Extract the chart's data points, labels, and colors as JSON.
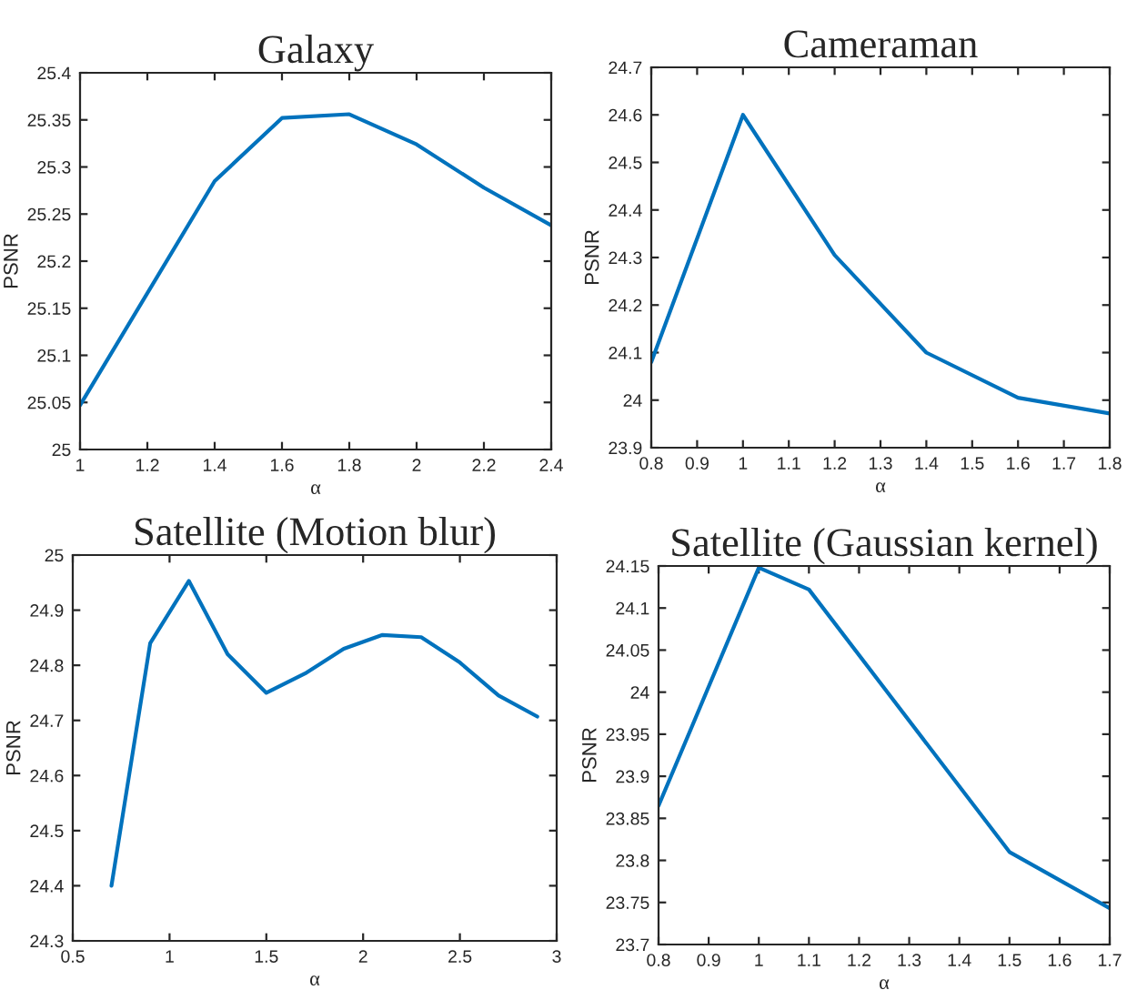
{
  "chart_data": [
    {
      "type": "line",
      "title": "Galaxy",
      "xlabel": "α",
      "ylabel": "PSNR",
      "x": [
        1,
        1.4,
        1.6,
        1.8,
        2,
        2.2,
        2.4
      ],
      "series": [
        {
          "color": "#0072bd",
          "values": [
            25.047,
            25.285,
            25.352,
            25.356,
            25.324,
            25.278,
            25.238
          ]
        }
      ],
      "xlim": [
        1,
        2.4
      ],
      "xticks": [
        1,
        1.2,
        1.4,
        1.6,
        1.8,
        2,
        2.2,
        2.4
      ],
      "ylim": [
        25,
        25.4
      ],
      "yticks": [
        25,
        25.05,
        25.1,
        25.15,
        25.2,
        25.25,
        25.3,
        25.35,
        25.4
      ],
      "grid": false,
      "legend": false,
      "marker": "none",
      "line_style": "solid"
    },
    {
      "type": "line",
      "title": "Cameraman",
      "xlabel": "α",
      "ylabel": "PSNR",
      "x": [
        0.8,
        1,
        1.2,
        1.4,
        1.6,
        1.8
      ],
      "series": [
        {
          "color": "#0072bd",
          "values": [
            24.08,
            24.6,
            24.305,
            24.1,
            24.005,
            23.972
          ]
        }
      ],
      "xlim": [
        0.8,
        1.8
      ],
      "xticks": [
        0.8,
        0.9,
        1,
        1.1,
        1.2,
        1.3,
        1.4,
        1.5,
        1.6,
        1.7,
        1.8
      ],
      "ylim": [
        23.9,
        24.7
      ],
      "yticks": [
        23.9,
        24,
        24.1,
        24.2,
        24.3,
        24.4,
        24.5,
        24.6,
        24.7
      ],
      "grid": false,
      "legend": false,
      "marker": "none",
      "line_style": "solid"
    },
    {
      "type": "line",
      "title": "Satellite (Motion blur)",
      "xlabel": "α",
      "ylabel": "PSNR",
      "x": [
        0.7,
        0.9,
        1.1,
        1.3,
        1.5,
        1.7,
        1.9,
        2.1,
        2.3,
        2.5,
        2.7,
        2.9
      ],
      "series": [
        {
          "color": "#0072bd",
          "values": [
            24.4,
            24.84,
            24.953,
            24.82,
            24.75,
            24.785,
            24.83,
            24.855,
            24.851,
            24.805,
            24.745,
            24.707
          ]
        }
      ],
      "xlim": [
        0.5,
        3
      ],
      "xticks": [
        0.5,
        1,
        1.5,
        2,
        2.5,
        3
      ],
      "ylim": [
        24.3,
        25
      ],
      "yticks": [
        24.3,
        24.4,
        24.5,
        24.6,
        24.7,
        24.8,
        24.9,
        25
      ],
      "grid": false,
      "legend": false,
      "marker": "none",
      "line_style": "solid"
    },
    {
      "type": "line",
      "title": "Satellite (Gaussian kernel)",
      "xlabel": "α",
      "ylabel": "PSNR",
      "x": [
        0.8,
        1,
        1.1,
        1.5,
        1.7
      ],
      "series": [
        {
          "color": "#0072bd",
          "values": [
            23.865,
            24.148,
            24.122,
            23.81,
            23.743
          ]
        }
      ],
      "xlim": [
        0.8,
        1.7
      ],
      "xticks": [
        0.8,
        0.9,
        1,
        1.1,
        1.2,
        1.3,
        1.4,
        1.5,
        1.6,
        1.7
      ],
      "ylim": [
        23.7,
        24.15
      ],
      "yticks": [
        23.7,
        23.75,
        23.8,
        23.85,
        23.9,
        23.95,
        24,
        24.05,
        24.1,
        24.15
      ],
      "grid": false,
      "legend": false,
      "marker": "none",
      "line_style": "solid"
    }
  ]
}
